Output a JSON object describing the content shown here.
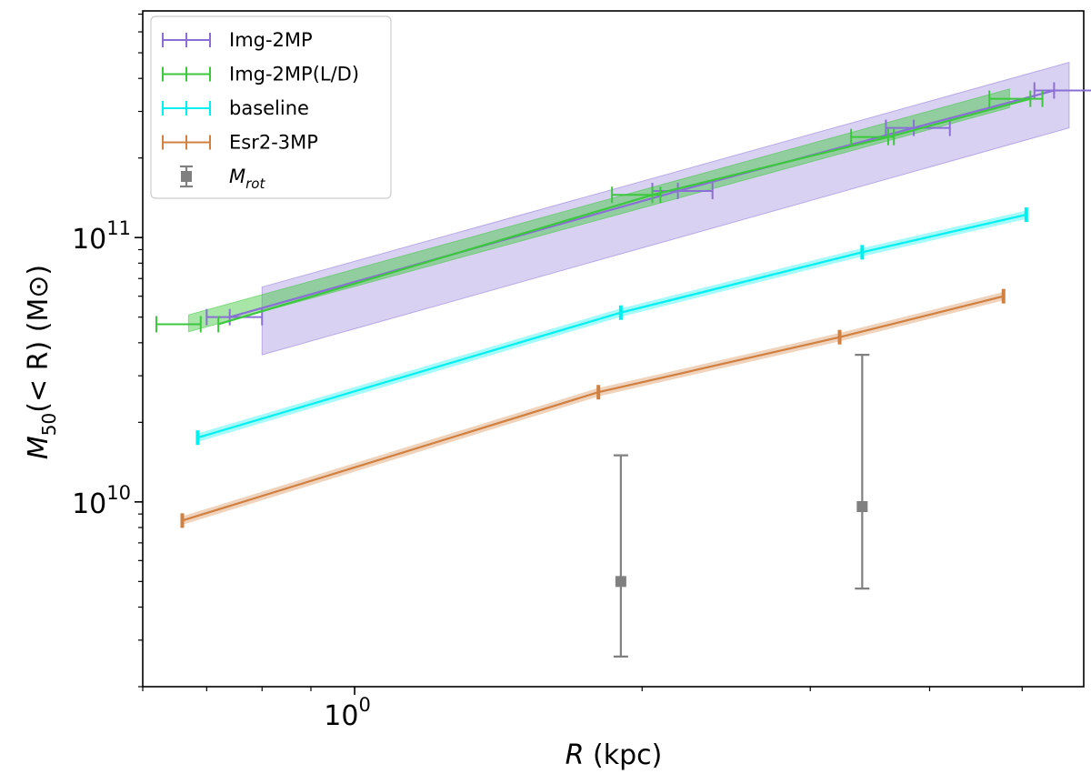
{
  "chart_data": {
    "type": "line",
    "xscale": "log",
    "yscale": "log",
    "xlabel": {
      "italic": "R",
      "rest": " (kpc)"
    },
    "ylabel": {
      "italic": "M",
      "sub": "50",
      "rest": "(< R) (M⊙)"
    },
    "xlim": [
      0.6,
      5.8
    ],
    "ylim": [
      2000000000.0,
      720000000000.0
    ],
    "xticks": [
      {
        "value": 1.0,
        "base": "10",
        "exp": "0"
      }
    ],
    "yticks": [
      {
        "value": 10000000000.0,
        "base": "10",
        "exp": "10"
      },
      {
        "value": 100000000000.0,
        "base": "10",
        "exp": "11"
      }
    ],
    "legend": {
      "location": "top-left",
      "entries": [
        {
          "label": "Img-2MP",
          "color": "#8a6fd6"
        },
        {
          "label": "Img-2MP(L/D)",
          "color": "#3cc83c"
        },
        {
          "label": "baseline",
          "color": "#00f0f0"
        },
        {
          "label": "Esr2-3MP",
          "color": "#d08040"
        },
        {
          "label_italic": "M",
          "label_sub": "rot",
          "color": "#808080"
        }
      ]
    },
    "series": [
      {
        "name": "Img-2MP",
        "color": "#8a6fd6",
        "points": [
          {
            "x": 0.74,
            "y": 50000000000.0,
            "xerr": [
              0.7,
              0.8
            ]
          },
          {
            "x": 2.18,
            "y": 150000000000.0,
            "xerr": [
              2.05,
              2.37
            ]
          },
          {
            "x": 3.85,
            "y": 260000000000.0,
            "xerr": [
              3.6,
              4.2
            ]
          },
          {
            "x": 5.4,
            "y": 360000000000.0,
            "xerr": [
              5.15,
              5.95
            ]
          }
        ],
        "band": {
          "x": [
            0.8,
            5.6
          ],
          "lower": [
            36000000000.0,
            260000000000.0
          ],
          "upper": [
            65000000000.0,
            460000000000.0
          ]
        }
      },
      {
        "name": "Img-2MP(L/D)",
        "color": "#3cc83c",
        "points": [
          {
            "x": 0.72,
            "y": 47000000000.0,
            "xerr": [
              0.62,
              0.69
            ]
          },
          {
            "x": 2.05,
            "y": 145000000000.0,
            "xerr": [
              1.86,
              2.09
            ]
          },
          {
            "x": 3.62,
            "y": 240000000000.0,
            "xerr": [
              3.31,
              3.67
            ]
          },
          {
            "x": 5.1,
            "y": 335000000000.0,
            "xerr": [
              4.62,
              5.25
            ]
          }
        ],
        "band": {
          "x": [
            0.67,
            4.85
          ],
          "lower": [
            44000000000.0,
            310000000000.0
          ],
          "upper": [
            51000000000.0,
            365000000000.0
          ]
        }
      },
      {
        "name": "baseline",
        "color": "#00f0f0",
        "points": [
          {
            "x": 0.685,
            "y": 17500000000.0
          },
          {
            "x": 1.9,
            "y": 52000000000.0
          },
          {
            "x": 3.4,
            "y": 88000000000.0
          },
          {
            "x": 5.05,
            "y": 122000000000.0
          }
        ]
      },
      {
        "name": "Esr2-3MP",
        "color": "#d08040",
        "points": [
          {
            "x": 0.66,
            "y": 8500000000.0
          },
          {
            "x": 1.8,
            "y": 26000000000.0
          },
          {
            "x": 3.22,
            "y": 42000000000.0
          },
          {
            "x": 4.78,
            "y": 60000000000.0
          }
        ]
      },
      {
        "name": "M_rot",
        "color": "#808080",
        "points": [
          {
            "x": 1.9,
            "y": 5000000000.0,
            "yerr": [
              2600000000.0,
              15000000000.0
            ]
          },
          {
            "x": 3.4,
            "y": 9600000000.0,
            "yerr": [
              4700000000.0,
              36000000000.0
            ]
          }
        ]
      }
    ]
  }
}
